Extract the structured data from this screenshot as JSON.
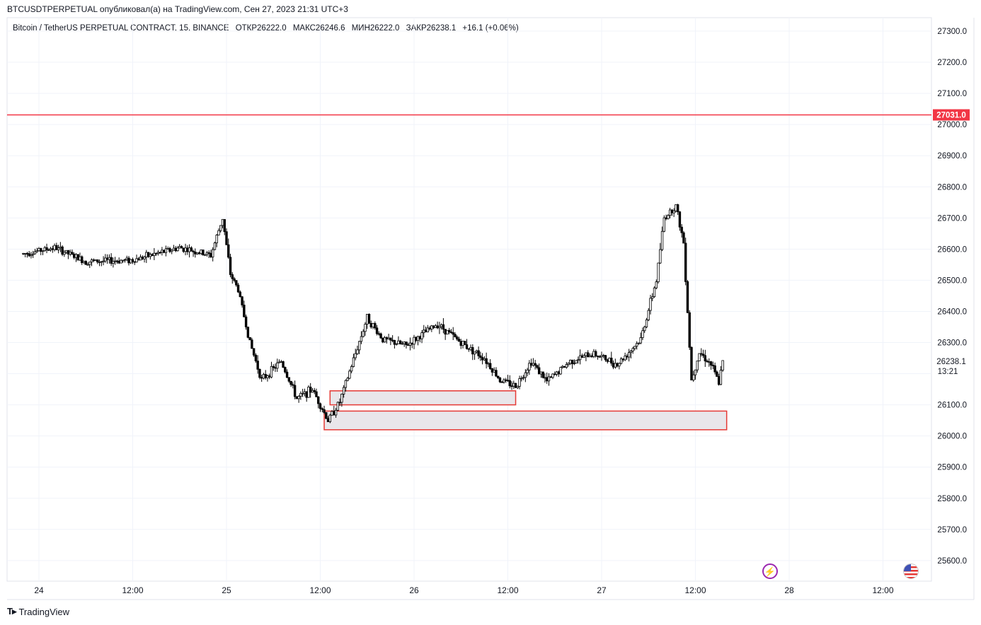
{
  "header": {
    "published": "BTCUSDTPERPETUAL опубликовал(а) на TradingView.com, Сен 27, 2023 21:31 UTC+3"
  },
  "legend": {
    "symbol": "Bitcoin / TetherUS PERPETUAL CONTRACT, 15, BINANCE",
    "open": "ОТКР26222.0",
    "high": "МАКС26246.6",
    "low": "МИН26222.0",
    "close": "ЗАКР26238.1",
    "change": "+16.1 (+0.06%)"
  },
  "price_axis": {
    "ticks": [
      "27300.0",
      "27200.0",
      "27100.0",
      "27000.0",
      "26900.0",
      "26800.0",
      "26700.0",
      "26600.0",
      "26500.0",
      "26400.0",
      "26300.0",
      "26200.0",
      "26100.0",
      "26000.0",
      "25900.0",
      "25800.0",
      "25700.0",
      "25600.0"
    ],
    "current_price": "26238.1",
    "countdown": "13:21",
    "alert_price": "27031.0"
  },
  "time_axis": {
    "labels": [
      "24",
      "12:00",
      "25",
      "12:00",
      "26",
      "12:00",
      "27",
      "12:00",
      "28",
      "12:00"
    ]
  },
  "footer": {
    "brand": "TradingView"
  },
  "colors": {
    "alert_line": "#f23645",
    "zone_border": "#e53935",
    "zone_fill": "#e9e6ea",
    "candle": "#000000",
    "grid": "#f0f3fa"
  },
  "chart_data": {
    "type": "candlestick",
    "interval": "15",
    "ylim": [
      25540,
      27330
    ],
    "alert_line": 27031.0,
    "zones": [
      {
        "x_start": "2023-09-25 13:15",
        "x_end": "2023-09-26 13:00",
        "low": 26100,
        "high": 26145
      },
      {
        "x_start": "2023-09-25 12:30",
        "x_end": "2023-09-27 16:00",
        "low": 26020,
        "high": 26080
      }
    ],
    "price_path": [
      {
        "t": "2023-09-23 22:00",
        "p": 26585
      },
      {
        "t": "2023-09-24 02:00",
        "p": 26605
      },
      {
        "t": "2023-09-24 06:00",
        "p": 26560
      },
      {
        "t": "2023-09-24 12:00",
        "p": 26565
      },
      {
        "t": "2023-09-24 18:00",
        "p": 26605
      },
      {
        "t": "2023-09-24 22:00",
        "p": 26580
      },
      {
        "t": "2023-09-24 23:30",
        "p": 26700
      },
      {
        "t": "2023-09-25 00:30",
        "p": 26520
      },
      {
        "t": "2023-09-25 01:30",
        "p": 26470
      },
      {
        "t": "2023-09-25 03:00",
        "p": 26300
      },
      {
        "t": "2023-09-25 04:30",
        "p": 26180
      },
      {
        "t": "2023-09-25 07:00",
        "p": 26240
      },
      {
        "t": "2023-09-25 09:00",
        "p": 26120
      },
      {
        "t": "2023-09-25 11:00",
        "p": 26150
      },
      {
        "t": "2023-09-25 13:00",
        "p": 26050
      },
      {
        "t": "2023-09-25 14:30",
        "p": 26110
      },
      {
        "t": "2023-09-25 18:00",
        "p": 26380
      },
      {
        "t": "2023-09-25 20:00",
        "p": 26310
      },
      {
        "t": "2023-09-25 23:00",
        "p": 26290
      },
      {
        "t": "2023-09-26 03:00",
        "p": 26360
      },
      {
        "t": "2023-09-26 06:00",
        "p": 26300
      },
      {
        "t": "2023-09-26 09:00",
        "p": 26250
      },
      {
        "t": "2023-09-26 11:00",
        "p": 26180
      },
      {
        "t": "2023-09-26 13:00",
        "p": 26160
      },
      {
        "t": "2023-09-26 15:00",
        "p": 26240
      },
      {
        "t": "2023-09-26 17:00",
        "p": 26175
      },
      {
        "t": "2023-09-26 20:00",
        "p": 26240
      },
      {
        "t": "2023-09-26 23:00",
        "p": 26265
      },
      {
        "t": "2023-09-27 02:00",
        "p": 26230
      },
      {
        "t": "2023-09-27 05:00",
        "p": 26310
      },
      {
        "t": "2023-09-27 07:00",
        "p": 26500
      },
      {
        "t": "2023-09-27 08:00",
        "p": 26700
      },
      {
        "t": "2023-09-27 09:30",
        "p": 26740
      },
      {
        "t": "2023-09-27 10:30",
        "p": 26620
      },
      {
        "t": "2023-09-27 11:30",
        "p": 26180
      },
      {
        "t": "2023-09-27 12:30",
        "p": 26270
      },
      {
        "t": "2023-09-27 14:00",
        "p": 26230
      },
      {
        "t": "2023-09-27 15:00",
        "p": 26170
      },
      {
        "t": "2023-09-27 15:30",
        "p": 26238.1
      }
    ]
  }
}
